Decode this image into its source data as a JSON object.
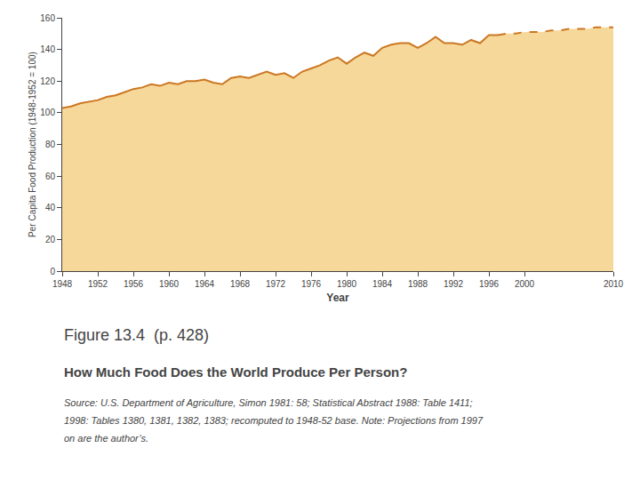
{
  "chart_data": {
    "type": "area",
    "title": "How Much Food Does the World Produce Per Person?",
    "annotations": [
      "Figure 13.4  (p. 428)",
      "Source: U.S. Department of Agriculture, Simon 1981: 58; Statistical Abstract 1988: Table 1411;",
      "1998: Tables 1380, 1381, 1382, 1383; recomputed to 1948-52 base. Note: Projections from 1997",
      "on are the author’s."
    ],
    "x_label": "Year",
    "y_label": "Per Capita Food Production (1948-1952 = 100)",
    "series": [
      {
        "type": "area",
        "color": "#F5D89A",
        "x": [
          1948,
          1949,
          1950,
          1951,
          1952,
          1953,
          1954,
          1955,
          1956,
          1957,
          1958,
          1959,
          1960,
          1961,
          1962,
          1963,
          1964,
          1965,
          1966,
          1967,
          1968,
          1969,
          1970,
          1971,
          1972,
          1973,
          1974,
          1975,
          1976,
          1977,
          1978,
          1979,
          1980,
          1981,
          1982,
          1983,
          1984,
          1985,
          1986,
          1987,
          1988,
          1989,
          1990,
          1991,
          1992,
          1993,
          1994,
          1995,
          1996,
          1997,
          1998,
          1999,
          2000,
          2001,
          2002,
          2003,
          2004,
          2005,
          2006,
          2007,
          2008,
          2009,
          2010
        ],
        "values": [
          103,
          104,
          106,
          107,
          108,
          110,
          111,
          113,
          115,
          116,
          118,
          117,
          119,
          118,
          120,
          120,
          121,
          119,
          118,
          122,
          123,
          122,
          124,
          126,
          124,
          125,
          122,
          126,
          128,
          130,
          133,
          135,
          131,
          135,
          138,
          136,
          141,
          143,
          144,
          144,
          141,
          144,
          148,
          144,
          144,
          143,
          146,
          144,
          149,
          149,
          150,
          150,
          151,
          151,
          151,
          152,
          152,
          153,
          153,
          153,
          154,
          154,
          154
        ]
      },
      {
        "type": "line",
        "color": "#CC7722",
        "line_style": "solid",
        "x": [
          1948,
          1949,
          1950,
          1951,
          1952,
          1953,
          1954,
          1955,
          1956,
          1957,
          1958,
          1959,
          1960,
          1961,
          1962,
          1963,
          1964,
          1965,
          1966,
          1967,
          1968,
          1969,
          1970,
          1971,
          1972,
          1973,
          1974,
          1975,
          1976,
          1977,
          1978,
          1979,
          1980,
          1981,
          1982,
          1983,
          1984,
          1985,
          1986,
          1987,
          1988,
          1989,
          1990,
          1991,
          1992,
          1993,
          1994,
          1995,
          1996,
          1997
        ],
        "values": [
          103,
          104,
          106,
          107,
          108,
          110,
          111,
          113,
          115,
          116,
          118,
          117,
          119,
          118,
          120,
          120,
          121,
          119,
          118,
          122,
          123,
          122,
          124,
          126,
          124,
          125,
          122,
          126,
          128,
          130,
          133,
          135,
          131,
          135,
          138,
          136,
          141,
          143,
          144,
          144,
          141,
          144,
          148,
          144,
          144,
          143,
          146,
          144,
          149,
          149
        ]
      },
      {
        "type": "line",
        "color": "#CC7722",
        "line_style": "dashed",
        "x": [
          1997,
          1998,
          1999,
          2000,
          2001,
          2002,
          2003,
          2004,
          2005,
          2006,
          2007,
          2008,
          2009,
          2010
        ],
        "values": [
          149,
          150,
          150,
          151,
          151,
          151,
          152,
          152,
          153,
          153,
          153,
          154,
          154,
          154
        ]
      }
    ],
    "xlim": [
      1948,
      2010
    ],
    "ylim": [
      0,
      160
    ],
    "xticks": [
      1948,
      1952,
      1956,
      1960,
      1964,
      1968,
      1972,
      1976,
      1980,
      1984,
      1988,
      1992,
      1996,
      2000,
      2010
    ],
    "yticks": [
      0,
      20,
      40,
      60,
      80,
      100,
      120,
      140,
      160
    ],
    "grid": false,
    "legend": false
  }
}
